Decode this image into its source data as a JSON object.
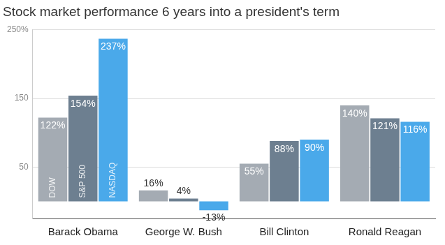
{
  "chart_data": {
    "type": "bar",
    "title": "Stock market performance 6 years into a president's term",
    "categories": [
      "Barack Obama",
      "George W. Bush",
      "Bill Clinton",
      "Ronald Reagan"
    ],
    "series": [
      {
        "name": "DOW",
        "color": "#a4abb3",
        "values": [
          122,
          16,
          55,
          140
        ],
        "value_labels": [
          "122%",
          "16%",
          "55%",
          "140%"
        ]
      },
      {
        "name": "S&P 500",
        "color": "#6d7f90",
        "values": [
          154,
          4,
          88,
          121
        ],
        "value_labels": [
          "154%",
          "4%",
          "88%",
          "121%"
        ]
      },
      {
        "name": "NASDAQ",
        "color": "#4aa9ea",
        "values": [
          237,
          -13,
          90,
          116
        ],
        "value_labels": [
          "237%",
          "-13%",
          "90%",
          "116%"
        ]
      }
    ],
    "ylim": [
      -25,
      250
    ],
    "yticks": [
      50,
      150,
      {
        "value": 250,
        "label": "250%"
      }
    ],
    "grid": true,
    "data_labels": true
  }
}
